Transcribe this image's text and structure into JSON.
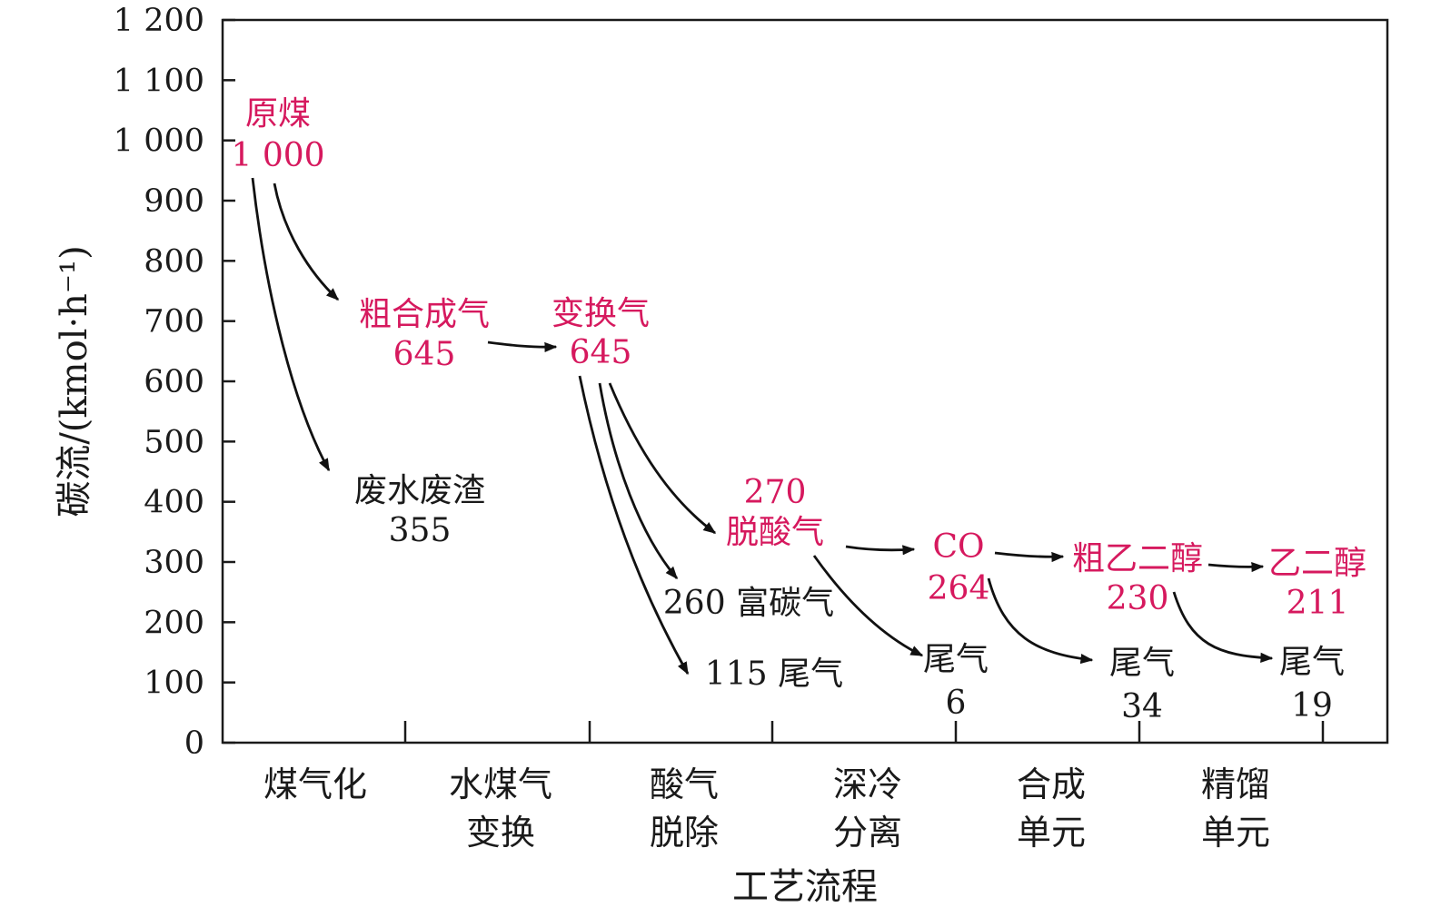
{
  "colors": {
    "product": "#d6195e",
    "loss": "#1a1a1a",
    "axis": "#1a1a1a",
    "arrow": "#111111"
  },
  "chart_data": {
    "type": "flow",
    "ylabel": "碳流/(kmol·h⁻¹)",
    "xlabel": "工艺流程",
    "ylim": [
      0,
      1200
    ],
    "yticks": [
      {
        "value": 0,
        "label": "0"
      },
      {
        "value": 100,
        "label": "100"
      },
      {
        "value": 200,
        "label": "200"
      },
      {
        "value": 300,
        "label": "300"
      },
      {
        "value": 400,
        "label": "400"
      },
      {
        "value": 500,
        "label": "500"
      },
      {
        "value": 600,
        "label": "600"
      },
      {
        "value": 700,
        "label": "700"
      },
      {
        "value": 800,
        "label": "800"
      },
      {
        "value": 900,
        "label": "900"
      },
      {
        "value": 1000,
        "label": "1 000"
      },
      {
        "value": 1100,
        "label": "1 100"
      },
      {
        "value": 1200,
        "label": "1 200"
      }
    ],
    "categories": [
      [
        "煤气化"
      ],
      [
        "水煤气",
        "变换"
      ],
      [
        "酸气",
        "脱除"
      ],
      [
        "深冷",
        "分离"
      ],
      [
        "合成",
        "单元"
      ],
      [
        "精馏",
        "单元"
      ]
    ],
    "nodes": [
      {
        "id": "coal",
        "lines": [
          "原煤",
          "1 000"
        ],
        "kind": "product"
      },
      {
        "id": "syngas",
        "lines": [
          "粗合成气",
          "645"
        ],
        "kind": "product"
      },
      {
        "id": "waste",
        "lines": [
          "废水废渣",
          "355"
        ],
        "kind": "loss"
      },
      {
        "id": "shift",
        "lines": [
          "变换气",
          "645"
        ],
        "kind": "product"
      },
      {
        "id": "acid",
        "lines": [
          "270",
          "脱酸气"
        ],
        "kind": "product"
      },
      {
        "id": "rich",
        "lines": [
          "260 富碳气"
        ],
        "kind": "loss"
      },
      {
        "id": "tail1",
        "lines": [
          "115 尾气"
        ],
        "kind": "loss"
      },
      {
        "id": "co",
        "lines": [
          "CO",
          "264"
        ],
        "kind": "product"
      },
      {
        "id": "tail2",
        "lines": [
          "尾气",
          "6"
        ],
        "kind": "loss"
      },
      {
        "id": "crude",
        "lines": [
          "粗乙二醇",
          "230"
        ],
        "kind": "product"
      },
      {
        "id": "tail3",
        "lines": [
          "尾气",
          "34"
        ],
        "kind": "loss"
      },
      {
        "id": "meg",
        "lines": [
          "乙二醇",
          "211"
        ],
        "kind": "product"
      },
      {
        "id": "tail4",
        "lines": [
          "尾气",
          "19"
        ],
        "kind": "loss"
      }
    ],
    "links": [
      {
        "from": "coal",
        "to": "syngas"
      },
      {
        "from": "coal",
        "to": "waste"
      },
      {
        "from": "syngas",
        "to": "shift"
      },
      {
        "from": "shift",
        "to": "acid"
      },
      {
        "from": "shift",
        "to": "rich"
      },
      {
        "from": "shift",
        "to": "tail1"
      },
      {
        "from": "acid",
        "to": "co"
      },
      {
        "from": "acid",
        "to": "tail2"
      },
      {
        "from": "co",
        "to": "crude"
      },
      {
        "from": "co",
        "to": "tail3"
      },
      {
        "from": "crude",
        "to": "meg"
      },
      {
        "from": "crude",
        "to": "tail4"
      }
    ]
  }
}
